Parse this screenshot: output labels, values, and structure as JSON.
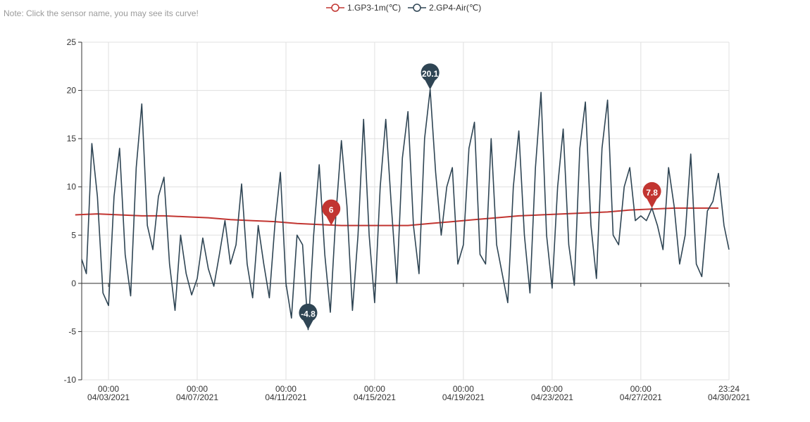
{
  "note": "Note: Click the sensor name, you may see its curve!",
  "chart_data": {
    "type": "line",
    "title": "",
    "xlabel": "",
    "ylabel": "",
    "ylim": [
      -10,
      25
    ],
    "yticks": [
      -10,
      -5,
      0,
      5,
      10,
      15,
      20,
      25
    ],
    "x_range": [
      "2021-04-01 19:00",
      "2021-04-30 23:24"
    ],
    "x_ticks": [
      {
        "time": "00:00",
        "date": "04/03/2021"
      },
      {
        "time": "00:00",
        "date": "04/07/2021"
      },
      {
        "time": "00:00",
        "date": "04/11/2021"
      },
      {
        "time": "00:00",
        "date": "04/15/2021"
      },
      {
        "time": "00:00",
        "date": "04/19/2021"
      },
      {
        "time": "00:00",
        "date": "04/23/2021"
      },
      {
        "time": "00:00",
        "date": "04/27/2021"
      },
      {
        "time": "23:24",
        "date": "04/30/2021"
      }
    ],
    "grid": true,
    "legend_position": "top-center",
    "series": [
      {
        "name": "1.GP3-1m(℃)",
        "color": "#c23531",
        "points": [
          [
            "04/01/2021",
            7.1
          ],
          [
            "04/02/2021",
            7.2
          ],
          [
            "04/03/2021",
            7.1
          ],
          [
            "04/04/2021",
            7.0
          ],
          [
            "04/05/2021",
            7.0
          ],
          [
            "04/06/2021",
            6.9
          ],
          [
            "04/07/2021",
            6.8
          ],
          [
            "04/08/2021",
            6.6
          ],
          [
            "04/09/2021",
            6.5
          ],
          [
            "04/10/2021",
            6.4
          ],
          [
            "04/11/2021",
            6.2
          ],
          [
            "04/12/2021",
            6.1
          ],
          [
            "04/13/2021",
            6.0
          ],
          [
            "04/14/2021",
            6.0
          ],
          [
            "04/15/2021",
            6.0
          ],
          [
            "04/16/2021",
            6.0
          ],
          [
            "04/17/2021",
            6.2
          ],
          [
            "04/18/2021",
            6.4
          ],
          [
            "04/19/2021",
            6.6
          ],
          [
            "04/20/2021",
            6.8
          ],
          [
            "04/21/2021",
            7.0
          ],
          [
            "04/22/2021",
            7.1
          ],
          [
            "04/23/2021",
            7.2
          ],
          [
            "04/24/2021",
            7.3
          ],
          [
            "04/25/2021",
            7.4
          ],
          [
            "04/26/2021",
            7.6
          ],
          [
            "04/27/2021",
            7.7
          ],
          [
            "04/28/2021",
            7.8
          ],
          [
            "04/29/2021",
            7.8
          ],
          [
            "04/30/2021",
            7.8
          ]
        ],
        "markers": [
          {
            "label": "6",
            "x": "04/13/2021 01:00",
            "y": 6.0
          },
          {
            "label": "7.8",
            "x": "04/27/2021 12:00",
            "y": 7.8
          }
        ]
      },
      {
        "name": "2.GP4-Air(℃)",
        "color": "#2f4554",
        "points": [
          [
            "04/01/2021 19:00",
            2.5
          ],
          [
            "04/02/2021 00:00",
            1.0
          ],
          [
            "04/02/2021 06:00",
            14.5
          ],
          [
            "04/02/2021 12:00",
            9.0
          ],
          [
            "04/02/2021 18:00",
            -1.0
          ],
          [
            "04/03/2021 00:00",
            -2.3
          ],
          [
            "04/03/2021 06:00",
            9.0
          ],
          [
            "04/03/2021 12:00",
            14.0
          ],
          [
            "04/03/2021 18:00",
            3.0
          ],
          [
            "04/04/2021 00:00",
            -1.3
          ],
          [
            "04/04/2021 06:00",
            12.0
          ],
          [
            "04/04/2021 12:00",
            18.6
          ],
          [
            "04/04/2021 18:00",
            6.0
          ],
          [
            "04/05/2021 00:00",
            3.5
          ],
          [
            "04/05/2021 06:00",
            9.0
          ],
          [
            "04/05/2021 12:00",
            11.0
          ],
          [
            "04/05/2021 18:00",
            2.0
          ],
          [
            "04/06/2021 00:00",
            -2.8
          ],
          [
            "04/06/2021 06:00",
            5.0
          ],
          [
            "04/06/2021 12:00",
            1.0
          ],
          [
            "04/06/2021 18:00",
            -1.2
          ],
          [
            "04/07/2021 00:00",
            0.5
          ],
          [
            "04/07/2021 06:00",
            4.7
          ],
          [
            "04/07/2021 12:00",
            1.5
          ],
          [
            "04/07/2021 18:00",
            -0.3
          ],
          [
            "04/08/2021 00:00",
            3.0
          ],
          [
            "04/08/2021 06:00",
            6.5
          ],
          [
            "04/08/2021 12:00",
            2.0
          ],
          [
            "04/08/2021 18:00",
            4.0
          ],
          [
            "04/09/2021 00:00",
            10.3
          ],
          [
            "04/09/2021 06:00",
            2.0
          ],
          [
            "04/09/2021 12:00",
            -1.5
          ],
          [
            "04/09/2021 18:00",
            6.0
          ],
          [
            "04/10/2021 00:00",
            2.0
          ],
          [
            "04/10/2021 06:00",
            -1.5
          ],
          [
            "04/10/2021 12:00",
            6.0
          ],
          [
            "04/10/2021 18:00",
            11.5
          ],
          [
            "04/11/2021 00:00",
            0.0
          ],
          [
            "04/11/2021 06:00",
            -3.6
          ],
          [
            "04/11/2021 12:00",
            5.0
          ],
          [
            "04/11/2021 18:00",
            4.0
          ],
          [
            "04/12/2021 00:00",
            -4.8
          ],
          [
            "04/12/2021 06:00",
            5.0
          ],
          [
            "04/12/2021 12:00",
            12.3
          ],
          [
            "04/12/2021 18:00",
            3.0
          ],
          [
            "04/13/2021 00:00",
            -3.0
          ],
          [
            "04/13/2021 06:00",
            7.0
          ],
          [
            "04/13/2021 12:00",
            14.8
          ],
          [
            "04/13/2021 18:00",
            8.0
          ],
          [
            "04/14/2021 00:00",
            -2.8
          ],
          [
            "04/14/2021 06:00",
            5.0
          ],
          [
            "04/14/2021 12:00",
            17.0
          ],
          [
            "04/14/2021 18:00",
            5.0
          ],
          [
            "04/15/2021 00:00",
            -2.0
          ],
          [
            "04/15/2021 06:00",
            10.0
          ],
          [
            "04/15/2021 12:00",
            17.0
          ],
          [
            "04/15/2021 18:00",
            8.0
          ],
          [
            "04/16/2021 00:00",
            0.0
          ],
          [
            "04/16/2021 06:00",
            13.0
          ],
          [
            "04/16/2021 12:00",
            17.8
          ],
          [
            "04/16/2021 18:00",
            6.0
          ],
          [
            "04/17/2021 00:00",
            1.0
          ],
          [
            "04/17/2021 06:00",
            15.0
          ],
          [
            "04/17/2021 12:00",
            20.1
          ],
          [
            "04/17/2021 18:00",
            11.5
          ],
          [
            "04/18/2021 00:00",
            5.0
          ],
          [
            "04/18/2021 06:00",
            10.0
          ],
          [
            "04/18/2021 12:00",
            12.0
          ],
          [
            "04/18/2021 18:00",
            2.0
          ],
          [
            "04/19/2021 00:00",
            4.0
          ],
          [
            "04/19/2021 06:00",
            14.0
          ],
          [
            "04/19/2021 12:00",
            16.7
          ],
          [
            "04/19/2021 18:00",
            3.0
          ],
          [
            "04/20/2021 00:00",
            2.0
          ],
          [
            "04/20/2021 06:00",
            15.0
          ],
          [
            "04/20/2021 12:00",
            4.0
          ],
          [
            "04/20/2021 18:00",
            1.0
          ],
          [
            "04/21/2021 00:00",
            -2.0
          ],
          [
            "04/21/2021 06:00",
            10.0
          ],
          [
            "04/21/2021 12:00",
            15.8
          ],
          [
            "04/21/2021 18:00",
            5.0
          ],
          [
            "04/22/2021 00:00",
            -1.0
          ],
          [
            "04/22/2021 06:00",
            12.0
          ],
          [
            "04/22/2021 12:00",
            19.8
          ],
          [
            "04/22/2021 18:00",
            5.0
          ],
          [
            "04/23/2021 00:00",
            -0.5
          ],
          [
            "04/23/2021 06:00",
            10.0
          ],
          [
            "04/23/2021 12:00",
            16.0
          ],
          [
            "04/23/2021 18:00",
            4.0
          ],
          [
            "04/24/2021 00:00",
            -0.2
          ],
          [
            "04/24/2021 06:00",
            14.0
          ],
          [
            "04/24/2021 12:00",
            18.8
          ],
          [
            "04/24/2021 18:00",
            6.0
          ],
          [
            "04/25/2021 00:00",
            0.5
          ],
          [
            "04/25/2021 06:00",
            14.0
          ],
          [
            "04/25/2021 12:00",
            19.0
          ],
          [
            "04/25/2021 18:00",
            5.0
          ],
          [
            "04/26/2021 00:00",
            4.0
          ],
          [
            "04/26/2021 06:00",
            10.0
          ],
          [
            "04/26/2021 12:00",
            12.0
          ],
          [
            "04/26/2021 18:00",
            6.5
          ],
          [
            "04/27/2021 00:00",
            7.0
          ],
          [
            "04/27/2021 06:00",
            6.5
          ],
          [
            "04/27/2021 12:00",
            7.8
          ],
          [
            "04/27/2021 18:00",
            6.0
          ],
          [
            "04/28/2021 00:00",
            3.5
          ],
          [
            "04/28/2021 06:00",
            12.0
          ],
          [
            "04/28/2021 12:00",
            8.0
          ],
          [
            "04/28/2021 18:00",
            2.0
          ],
          [
            "04/29/2021 00:00",
            5.0
          ],
          [
            "04/29/2021 06:00",
            13.4
          ],
          [
            "04/29/2021 12:00",
            2.0
          ],
          [
            "04/29/2021 18:00",
            0.7
          ],
          [
            "04/30/2021 00:00",
            7.5
          ],
          [
            "04/30/2021 06:00",
            8.5
          ],
          [
            "04/30/2021 12:00",
            11.4
          ],
          [
            "04/30/2021 18:00",
            6.0
          ],
          [
            "04/30/2021 23:24",
            3.5
          ]
        ],
        "markers": [
          {
            "label": "20.1",
            "x": "04/17/2021 12:00",
            "y": 20.1
          },
          {
            "label": "-4.8",
            "x": "04/12/2021 00:00",
            "y": -4.8
          }
        ]
      }
    ]
  }
}
